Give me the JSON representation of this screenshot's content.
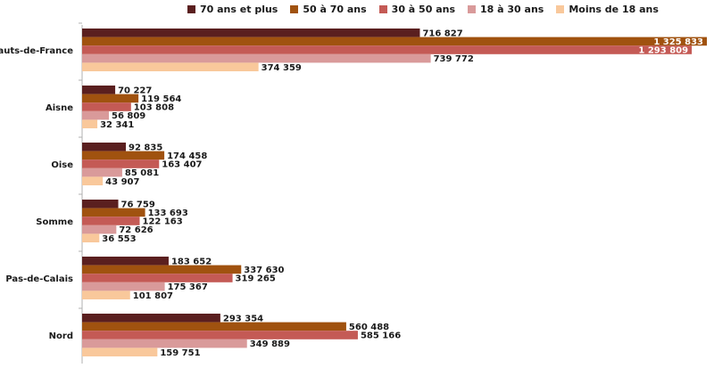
{
  "chart_data": {
    "type": "bar",
    "orientation": "horizontal",
    "categories": [
      "Hauts-de-France",
      "Aisne",
      "Oise",
      "Somme",
      "Pas-de-Calais",
      "Nord"
    ],
    "series": [
      {
        "name": "70 ans et plus",
        "color": "#5a1f1f",
        "values": [
          716827,
          70227,
          92835,
          76759,
          183652,
          293354
        ],
        "labels": [
          "716 827",
          "70 227",
          "92 835",
          "76 759",
          "183 652",
          "293 354"
        ]
      },
      {
        "name": "50 à 70 ans",
        "color": "#a0520f",
        "values": [
          1325833,
          119564,
          174458,
          133693,
          337630,
          560488
        ],
        "labels": [
          "1 325 833",
          "119 564",
          "174 458",
          "133 693",
          "337 630",
          "560 488"
        ]
      },
      {
        "name": "30 à 50 ans",
        "color": "#c45a55",
        "values": [
          1293809,
          103808,
          163407,
          122163,
          319265,
          585166
        ],
        "labels": [
          "1 293 809",
          "103 808",
          "163 407",
          "122 163",
          "319 265",
          "585 166"
        ]
      },
      {
        "name": "18 à 30 ans",
        "color": "#d99a9a",
        "values": [
          739772,
          56809,
          85081,
          72626,
          175367,
          349889
        ],
        "labels": [
          "739 772",
          "56 809",
          "85 081",
          "72 626",
          "175 367",
          "349 889"
        ]
      },
      {
        "name": "Moins de 18 ans",
        "color": "#f9c89b",
        "values": [
          374359,
          32341,
          43907,
          36553,
          101807,
          159751
        ],
        "labels": [
          "374 359",
          "32 341",
          "43 907",
          "36 553",
          "101 807",
          "159 751"
        ]
      }
    ],
    "legend_position": "top",
    "grid": false
  }
}
